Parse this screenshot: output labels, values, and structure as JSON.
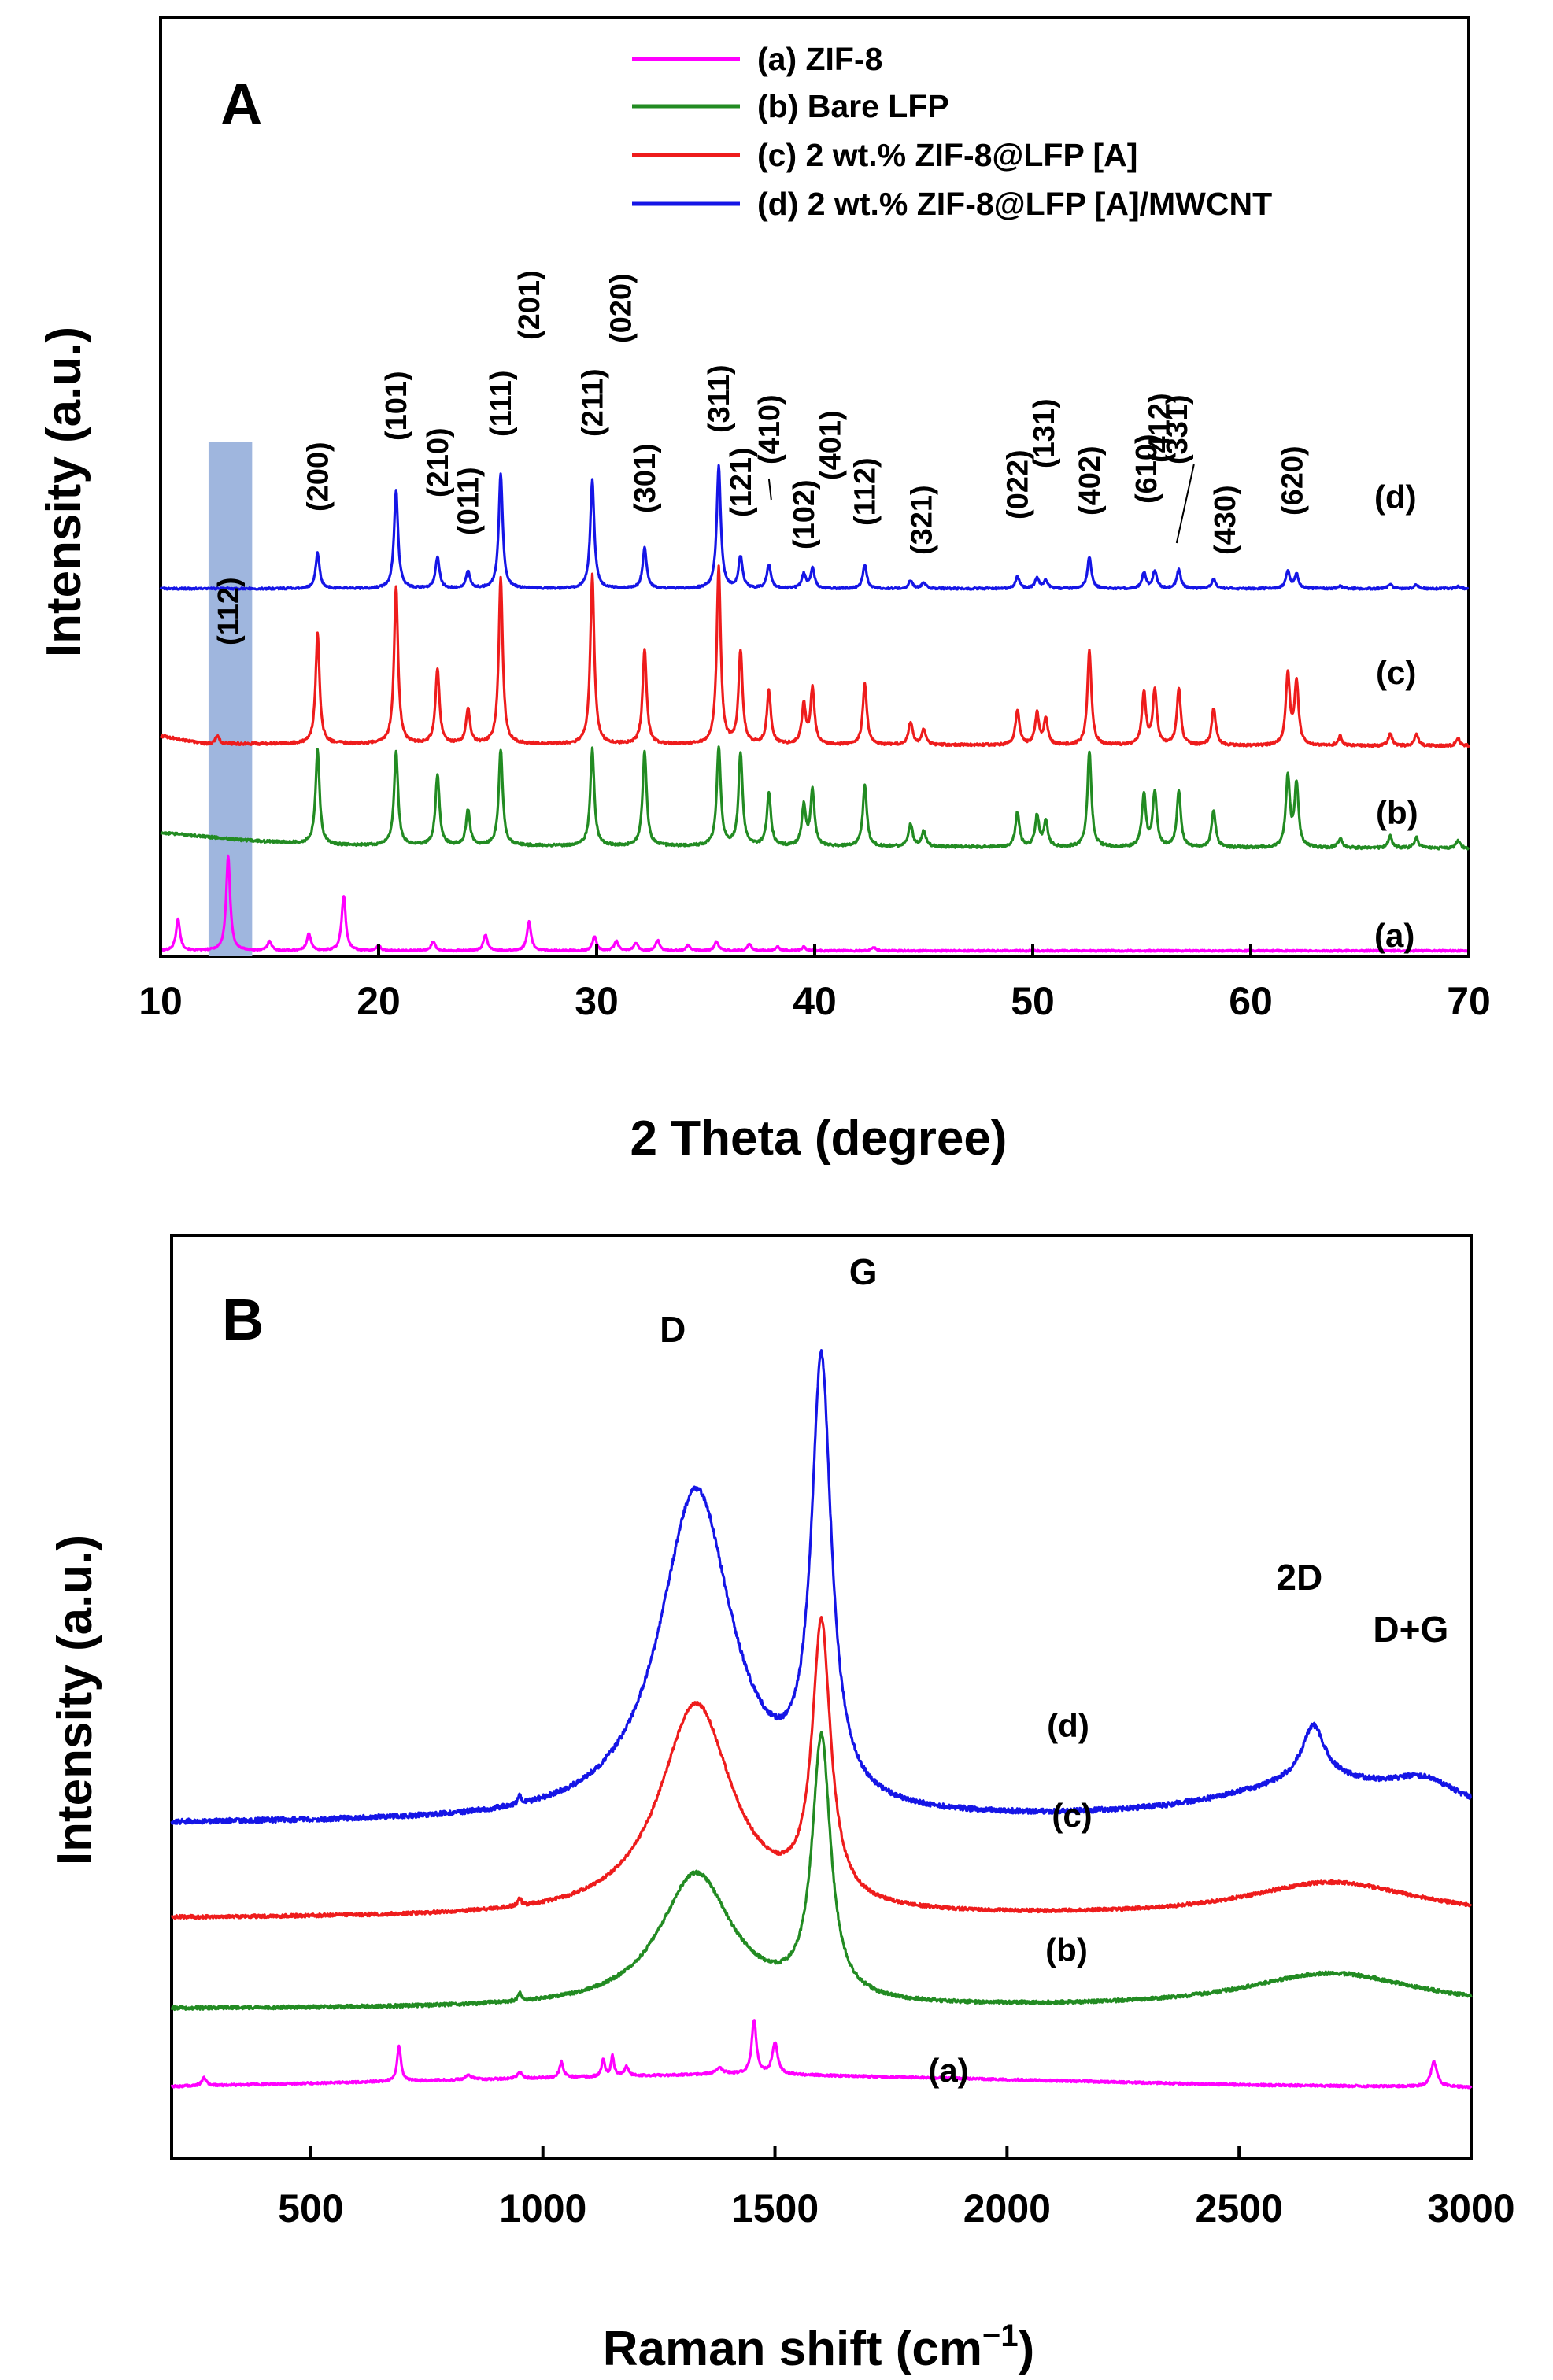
{
  "chart_data": [
    {
      "panel": "A",
      "type": "line",
      "title": "",
      "xlabel": "2 Theta (degree)",
      "ylabel": "Intensity (a.u.)",
      "xlim": [
        10,
        70
      ],
      "xticks": [
        10,
        20,
        30,
        40,
        50,
        60,
        70
      ],
      "grid": false,
      "legend_position": "top",
      "highlight_band": {
        "x_range": [
          12.2,
          14.2
        ],
        "color": "#9fb6de",
        "label": "(112)"
      },
      "series": [
        {
          "name": "(a) ZIF-8",
          "tag": "(a)",
          "color": "#ff00ff",
          "offset": 0,
          "noise": 1.0,
          "peaks": [
            [
              10.8,
              40
            ],
            [
              13.1,
              120
            ],
            [
              15.0,
              12
            ],
            [
              16.8,
              22
            ],
            [
              18.4,
              70
            ],
            [
              20.0,
              6
            ],
            [
              22.5,
              12
            ],
            [
              24.9,
              20
            ],
            [
              26.9,
              37
            ],
            [
              29.9,
              18
            ],
            [
              30.9,
              12
            ],
            [
              31.8,
              10
            ],
            [
              32.8,
              13
            ],
            [
              34.2,
              7
            ],
            [
              35.5,
              12
            ],
            [
              37.0,
              9
            ],
            [
              38.3,
              5
            ],
            [
              39.5,
              5
            ],
            [
              42.7,
              5
            ]
          ],
          "baseline": [
            [
              10,
              2
            ],
            [
              70,
              2
            ]
          ]
        },
        {
          "name": "(b) Bare LFP",
          "tag": "(b)",
          "color": "#228b22",
          "offset": 130,
          "noise": 1.6,
          "peaks": [
            [
              17.2,
              120
            ],
            [
              20.8,
              120
            ],
            [
              22.7,
              90
            ],
            [
              24.1,
              45
            ],
            [
              25.6,
              122
            ],
            [
              29.8,
              123
            ],
            [
              32.2,
              120
            ],
            [
              35.6,
              125
            ],
            [
              36.6,
              118
            ],
            [
              37.9,
              68
            ],
            [
              39.5,
              50
            ],
            [
              39.9,
              70
            ],
            [
              42.3,
              78
            ],
            [
              44.4,
              29
            ],
            [
              45.0,
              20
            ],
            [
              49.3,
              44
            ],
            [
              50.2,
              40
            ],
            [
              50.6,
              32
            ],
            [
              52.6,
              122
            ],
            [
              55.1,
              67
            ],
            [
              55.6,
              70
            ],
            [
              56.7,
              71
            ],
            [
              58.3,
              47
            ],
            [
              61.7,
              90
            ],
            [
              62.1,
              80
            ],
            [
              64.1,
              12
            ],
            [
              66.4,
              15
            ],
            [
              67.6,
              14
            ],
            [
              69.5,
              10
            ]
          ],
          "baseline": [
            [
              10,
              22
            ],
            [
              14,
              12
            ],
            [
              18,
              6
            ],
            [
              70,
              2
            ]
          ]
        },
        {
          "name": "(c) 2 wt.% ZIF-8@LFP [A]",
          "tag": "(c)",
          "color": "#ee1c1c",
          "offset": 260,
          "noise": 1.6,
          "peaks": [
            [
              12.6,
              10
            ],
            [
              17.2,
              140
            ],
            [
              20.8,
              200
            ],
            [
              22.7,
              95
            ],
            [
              24.1,
              45
            ],
            [
              25.6,
              210
            ],
            [
              29.8,
              215
            ],
            [
              32.2,
              120
            ],
            [
              35.6,
              225
            ],
            [
              36.6,
              118
            ],
            [
              37.9,
              68
            ],
            [
              39.5,
              50
            ],
            [
              39.9,
              70
            ],
            [
              42.3,
              78
            ],
            [
              44.4,
              29
            ],
            [
              45.0,
              20
            ],
            [
              49.3,
              44
            ],
            [
              50.2,
              40
            ],
            [
              50.6,
              32
            ],
            [
              52.6,
              120
            ],
            [
              55.1,
              67
            ],
            [
              55.6,
              70
            ],
            [
              56.7,
              71
            ],
            [
              58.3,
              47
            ],
            [
              61.7,
              90
            ],
            [
              62.1,
              80
            ],
            [
              64.1,
              12
            ],
            [
              66.4,
              15
            ],
            [
              67.6,
              14
            ],
            [
              69.5,
              10
            ]
          ],
          "baseline": [
            [
              10,
              15
            ],
            [
              12,
              5
            ],
            [
              70,
              2
            ]
          ]
        },
        {
          "name": "(d) 2 wt.% ZIF-8@LFP [A]/MWCNT",
          "tag": "(d)",
          "color": "#1515e6",
          "offset": 460,
          "noise": 1.2,
          "peaks": [
            [
              17.2,
              45
            ],
            [
              20.8,
              125
            ],
            [
              22.7,
              40
            ],
            [
              24.1,
              22
            ],
            [
              25.6,
              145
            ],
            [
              29.8,
              138
            ],
            [
              32.2,
              52
            ],
            [
              35.6,
              155
            ],
            [
              36.6,
              40
            ],
            [
              37.9,
              30
            ],
            [
              39.5,
              18
            ],
            [
              39.9,
              25
            ],
            [
              42.3,
              30
            ],
            [
              44.4,
              10
            ],
            [
              45.0,
              8
            ],
            [
              49.3,
              15
            ],
            [
              50.2,
              14
            ],
            [
              50.6,
              10
            ],
            [
              52.6,
              40
            ],
            [
              55.1,
              20
            ],
            [
              55.6,
              22
            ],
            [
              56.7,
              24
            ],
            [
              58.3,
              12
            ],
            [
              61.7,
              22
            ],
            [
              62.1,
              18
            ],
            [
              64.1,
              4
            ],
            [
              66.4,
              6
            ],
            [
              67.6,
              5
            ],
            [
              69.5,
              3
            ]
          ],
          "baseline": [
            [
              10,
              2
            ],
            [
              70,
              2
            ]
          ]
        }
      ],
      "peak_labels": [
        {
          "text": "(112)",
          "x": 13.1
        },
        {
          "text": "(200)",
          "x": 17.2
        },
        {
          "text": "(101)",
          "x": 20.8
        },
        {
          "text": "(210)",
          "x": 22.7
        },
        {
          "text": "(011)",
          "x": 24.1
        },
        {
          "text": "(111)",
          "x": 25.6
        },
        {
          "text": "(201)",
          "x": 26.9
        },
        {
          "text": "(211)",
          "x": 29.8
        },
        {
          "text": "(020)",
          "x": 31.1
        },
        {
          "text": "(301)",
          "x": 32.2
        },
        {
          "text": "(311)",
          "x": 35.6
        },
        {
          "text": "(121)",
          "x": 36.6
        },
        {
          "text": "(410)",
          "x": 37.9
        },
        {
          "text": "(102)",
          "x": 39.5
        },
        {
          "text": "(401)",
          "x": 40.7
        },
        {
          "text": "(112)",
          "x": 42.3
        },
        {
          "text": "(321)",
          "x": 44.9
        },
        {
          "text": "(022)",
          "x": 49.3
        },
        {
          "text": "(131)",
          "x": 50.5
        },
        {
          "text": "(402)",
          "x": 52.6
        },
        {
          "text": "(610)",
          "x": 55.2
        },
        {
          "text": "(412)",
          "x": 55.8
        },
        {
          "text": "(331)",
          "x": 56.6
        },
        {
          "text": "(430)",
          "x": 58.8
        },
        {
          "text": "(620)",
          "x": 61.9
        }
      ]
    },
    {
      "panel": "B",
      "type": "line",
      "title": "",
      "xlabel": "Raman shift (cm",
      "xlabel_superscript": "−1",
      "xlabel_suffix": ")",
      "ylabel": "Intensity (a.u.)",
      "xlim": [
        200,
        3000
      ],
      "xticks": [
        500,
        1000,
        1500,
        2000,
        2500,
        3000
      ],
      "grid": false,
      "band_labels": [
        {
          "text": "D",
          "x": 1280
        },
        {
          "text": "G",
          "x": 1690
        },
        {
          "text": "2D",
          "x": 2630
        },
        {
          "text": "D+G",
          "x": 2870
        }
      ],
      "series": [
        {
          "name": "(a)",
          "tag": "(a)",
          "color": "#ff00ff",
          "offset": 0,
          "noise": 1.4,
          "baseline": [
            [
              200,
              4
            ],
            [
              1400,
              20
            ],
            [
              1600,
              18
            ],
            [
              2500,
              6
            ],
            [
              3000,
              3
            ]
          ],
          "peaks": [
            [
              270,
              10,
              6
            ],
            [
              690,
              45,
              5
            ],
            [
              840,
              6,
              8
            ],
            [
              950,
              8,
              6
            ],
            [
              1040,
              20,
              5
            ],
            [
              1130,
              22,
              4
            ],
            [
              1150,
              26,
              4
            ],
            [
              1180,
              12,
              5
            ],
            [
              1380,
              8,
              8
            ],
            [
              1455,
              68,
              6
            ],
            [
              1500,
              40,
              7
            ],
            [
              2920,
              32,
              8
            ]
          ]
        },
        {
          "name": "(b)",
          "tag": "(b)",
          "color": "#228b22",
          "offset": 100,
          "noise": 2.2,
          "baseline": [
            [
              200,
              2
            ],
            [
              3000,
              2
            ]
          ],
          "peaks": [
            [
              950,
              10,
              4
            ],
            [
              1330,
              170,
              95
            ],
            [
              1600,
              330,
              24
            ],
            [
              2700,
              45,
              230
            ]
          ]
        },
        {
          "name": "(c)",
          "tag": "(c)",
          "color": "#ee1c1c",
          "offset": 215,
          "noise": 2.2,
          "baseline": [
            [
              200,
              2
            ],
            [
              3000,
              2
            ]
          ],
          "peaks": [
            [
              950,
              10,
              4
            ],
            [
              1330,
              270,
              95
            ],
            [
              1600,
              350,
              24
            ],
            [
              2700,
              45,
              230
            ]
          ]
        },
        {
          "name": "(d)",
          "tag": "(d)",
          "color": "#1515e6",
          "offset": 335,
          "noise": 3.2,
          "baseline": [
            [
              200,
              2
            ],
            [
              3000,
              2
            ]
          ],
          "peaks": [
            [
              950,
              10,
              4
            ],
            [
              1330,
              420,
              95
            ],
            [
              1600,
              550,
              26
            ],
            [
              2670,
              50,
              260
            ],
            [
              2660,
              70,
              30
            ],
            [
              2900,
              30,
              90
            ]
          ]
        }
      ]
    }
  ]
}
